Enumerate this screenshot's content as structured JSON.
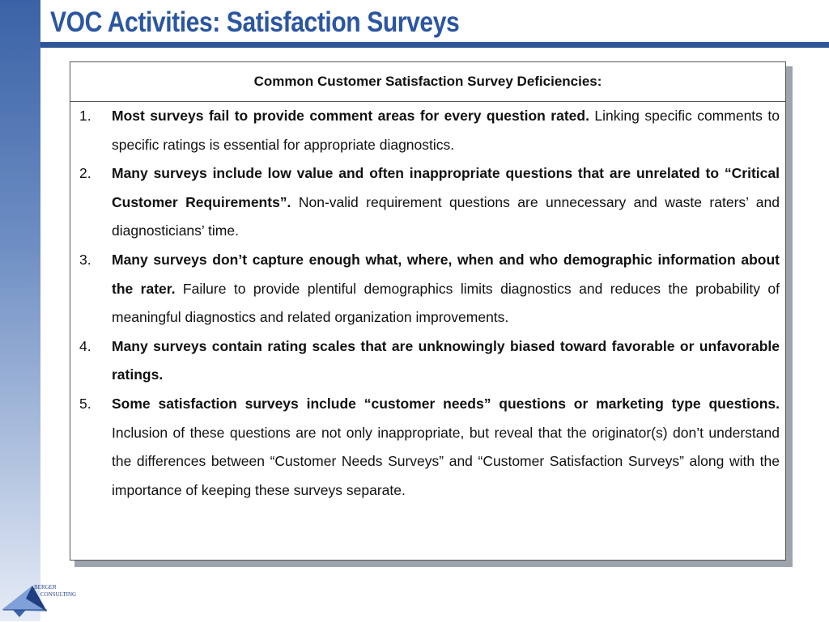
{
  "slide": {
    "title": "VOC Activities: Satisfaction Surveys"
  },
  "table": {
    "header": "Common Customer Satisfaction Survey Deficiencies:",
    "items": [
      {
        "number": "1.",
        "bold": "Most surveys fail to provide comment areas for every question rated.",
        "text": " Linking specific comments to specific ratings is essential for appropriate diagnostics."
      },
      {
        "number": "2.",
        "bold": "Many surveys include low value and often inappropriate questions that are unrelated to “Critical Customer Requirements”.",
        "text": " Non-valid requirement questions are unnecessary and waste raters’ and diagnosticians’ time."
      },
      {
        "number": "3.",
        "bold": "Many surveys don’t capture enough what, where, when and who demographic information about the rater.",
        "text": " Failure to provide plentiful demographics limits diagnostics and reduces the probability of meaningful diagnostics and related organization improvements."
      },
      {
        "number": "4.",
        "bold": "Many surveys contain rating scales that are unknowingly biased toward favorable or unfavorable ratings.",
        "text": ""
      },
      {
        "number": "5.",
        "bold": "Some satisfaction surveys include “customer needs” questions or marketing type questions.",
        "text": " Inclusion of these questions are not only inappropriate, but reveal that the originator(s) don’t understand the differences between “Customer Needs Surveys” and “Customer Satisfaction Surveys” along with the importance of keeping these surveys separate."
      }
    ]
  },
  "logo": {
    "line1": "BERGER",
    "line2": "CONSULTING",
    "colors": {
      "light": "#7fa0d8",
      "dark": "#1f3f80",
      "mid": "#3a62a6"
    }
  }
}
